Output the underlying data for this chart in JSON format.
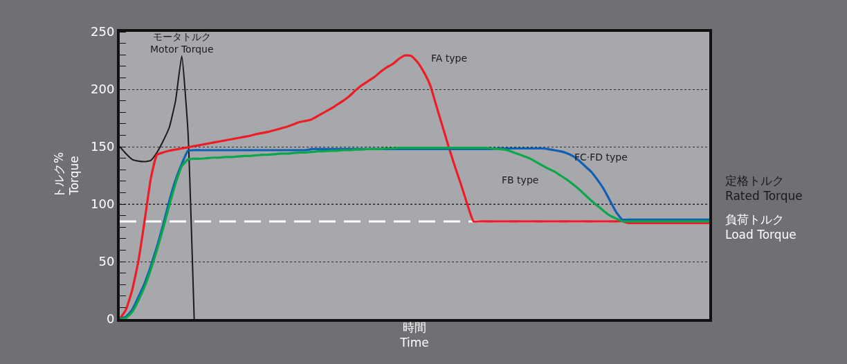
{
  "chart_data": {
    "type": "line",
    "xlabel": "時間\nTime",
    "ylabel": "トルク%\nTorque",
    "categories": [
      null,
      null,
      null,
      null,
      null,
      null,
      null,
      null,
      null,
      null,
      null,
      null,
      null,
      null,
      null,
      null,
      null,
      null,
      null,
      null,
      null,
      null,
      null,
      null,
      null,
      null,
      null,
      null,
      null,
      null,
      null,
      null,
      null,
      null,
      null,
      null,
      null,
      null,
      null,
      null,
      null,
      null,
      null,
      null,
      null,
      null,
      null,
      null,
      null,
      null,
      null,
      null,
      null,
      null,
      null,
      null,
      null,
      null,
      null,
      null,
      null,
      null,
      null,
      null,
      null,
      null,
      null,
      null,
      null,
      null,
      null,
      null,
      null,
      null,
      null,
      null,
      null,
      null,
      null,
      null,
      null,
      null,
      null,
      null,
      null,
      null,
      null,
      null,
      null,
      null,
      null,
      null,
      null,
      null,
      null,
      null
    ],
    "series": [
      {
        "name": "モータトルク\nMotor Torque",
        "color": "#1a1a1a",
        "values": [
          150,
          144,
          139,
          137.5,
          137,
          138,
          145,
          155,
          167,
          190,
          229,
          163,
          0,
          null,
          null,
          null,
          null,
          null,
          null,
          null,
          null,
          null,
          null,
          null,
          null,
          null,
          null,
          null,
          null,
          null,
          null,
          null,
          null,
          null,
          null,
          null,
          null,
          null,
          null,
          null,
          null,
          null,
          null,
          null,
          null,
          null,
          null,
          null,
          null,
          null,
          null,
          null,
          null,
          null,
          null,
          null,
          null,
          null,
          null,
          null,
          null,
          null,
          null,
          null,
          null,
          null,
          null,
          null,
          null,
          null,
          null,
          null,
          null,
          null,
          null,
          null,
          null,
          null,
          null,
          null,
          null,
          null,
          null,
          null,
          null,
          null,
          null,
          null,
          null,
          null,
          null,
          null,
          null,
          null,
          null,
          null
        ]
      },
      {
        "name": "FA type",
        "color": "#ee1c25",
        "values": [
          0,
          8,
          25,
          50,
          85,
          122,
          143,
          145,
          146.5,
          147.5,
          148.5,
          149.5,
          150.5,
          151.5,
          152.5,
          153.5,
          154.5,
          155.5,
          156.5,
          157.5,
          158.5,
          159.5,
          161,
          162,
          163,
          164.5,
          166,
          167.5,
          169.5,
          171.5,
          172.5,
          174,
          177,
          180,
          183,
          186.5,
          190,
          194,
          199,
          203.5,
          207,
          210.5,
          215,
          219,
          222,
          226.5,
          229.5,
          229,
          223.5,
          215,
          204,
          186,
          168,
          150,
          133,
          117,
          100,
          85,
          85,
          85,
          85,
          85,
          85,
          85,
          85,
          85,
          85,
          85,
          85,
          85,
          85,
          85,
          85,
          85,
          85,
          85,
          85,
          85,
          85,
          85,
          85,
          85,
          83.5,
          83.5,
          83.5,
          83.5,
          83.5,
          83.5,
          83.5,
          83.5,
          83.5,
          83.5,
          83.5,
          83.5,
          83.5,
          83.5
        ]
      },
      {
        "name": "FC·FD type",
        "color": "#0f5fb4",
        "values": [
          0,
          2,
          8,
          19,
          31,
          46,
          63,
          82,
          103,
          121,
          135,
          146.5,
          147,
          147,
          147,
          147,
          147,
          147,
          147,
          147,
          147,
          147,
          147,
          147,
          147,
          147,
          147,
          147,
          147,
          147,
          147,
          148,
          148,
          148,
          148,
          148,
          148,
          148,
          148,
          148,
          148,
          148,
          148,
          148,
          148,
          148,
          148,
          148,
          148,
          148,
          148,
          148,
          148,
          148,
          148,
          148,
          148,
          148,
          148,
          148,
          148,
          148.5,
          148.5,
          148.5,
          148.5,
          148.5,
          148.5,
          148.5,
          148.5,
          148,
          147,
          146,
          144.5,
          142,
          138,
          133,
          128,
          121,
          113,
          103,
          93,
          86.5,
          86.5,
          86.5,
          86.5,
          86.5,
          86.5,
          86.5,
          86.5,
          86.5,
          86.5,
          86.5,
          86.5,
          86.5,
          86.5,
          86.5
        ]
      },
      {
        "name": "FB type",
        "color": "#0aa64b",
        "values": [
          0,
          1,
          6,
          16,
          28,
          43,
          60,
          79,
          99,
          118,
          133,
          139,
          139.5,
          139.5,
          140,
          140.5,
          140.5,
          141,
          141,
          141.5,
          142,
          142,
          142.5,
          143,
          143,
          143.5,
          144,
          144,
          144.5,
          145,
          145,
          145.5,
          146,
          146,
          146.5,
          146.5,
          147,
          147,
          147.5,
          147.5,
          148,
          148,
          148,
          148.5,
          148.5,
          149,
          149,
          149,
          149,
          149,
          149,
          149,
          149,
          149,
          149,
          149,
          149,
          149,
          149,
          149,
          148.5,
          148,
          147.5,
          146,
          144,
          142,
          140,
          137,
          134,
          131,
          128.5,
          125,
          121.5,
          117.5,
          113,
          108,
          103,
          98.5,
          94,
          90,
          87.5,
          85,
          85,
          85,
          85,
          85,
          85,
          85,
          85,
          85,
          85,
          85,
          85,
          85,
          85,
          85
        ]
      }
    ],
    "ylim": [
      0,
      250
    ],
    "yticks": [
      0,
      50,
      100,
      150,
      200,
      250
    ],
    "grid": "y",
    "legend": false,
    "tick_labels": "y",
    "marker": "none",
    "line_style": "solid",
    "ref_lines": [
      {
        "axis": "y",
        "value": 100,
        "label": "定格トルク\nRated Torque",
        "color": "#1a1a1a",
        "line_style": "dotted"
      },
      {
        "axis": "y",
        "value": 85,
        "label": "負荷トルク\nLoad Torque",
        "color": "#ffffff",
        "line_style": "dashed"
      }
    ]
  }
}
